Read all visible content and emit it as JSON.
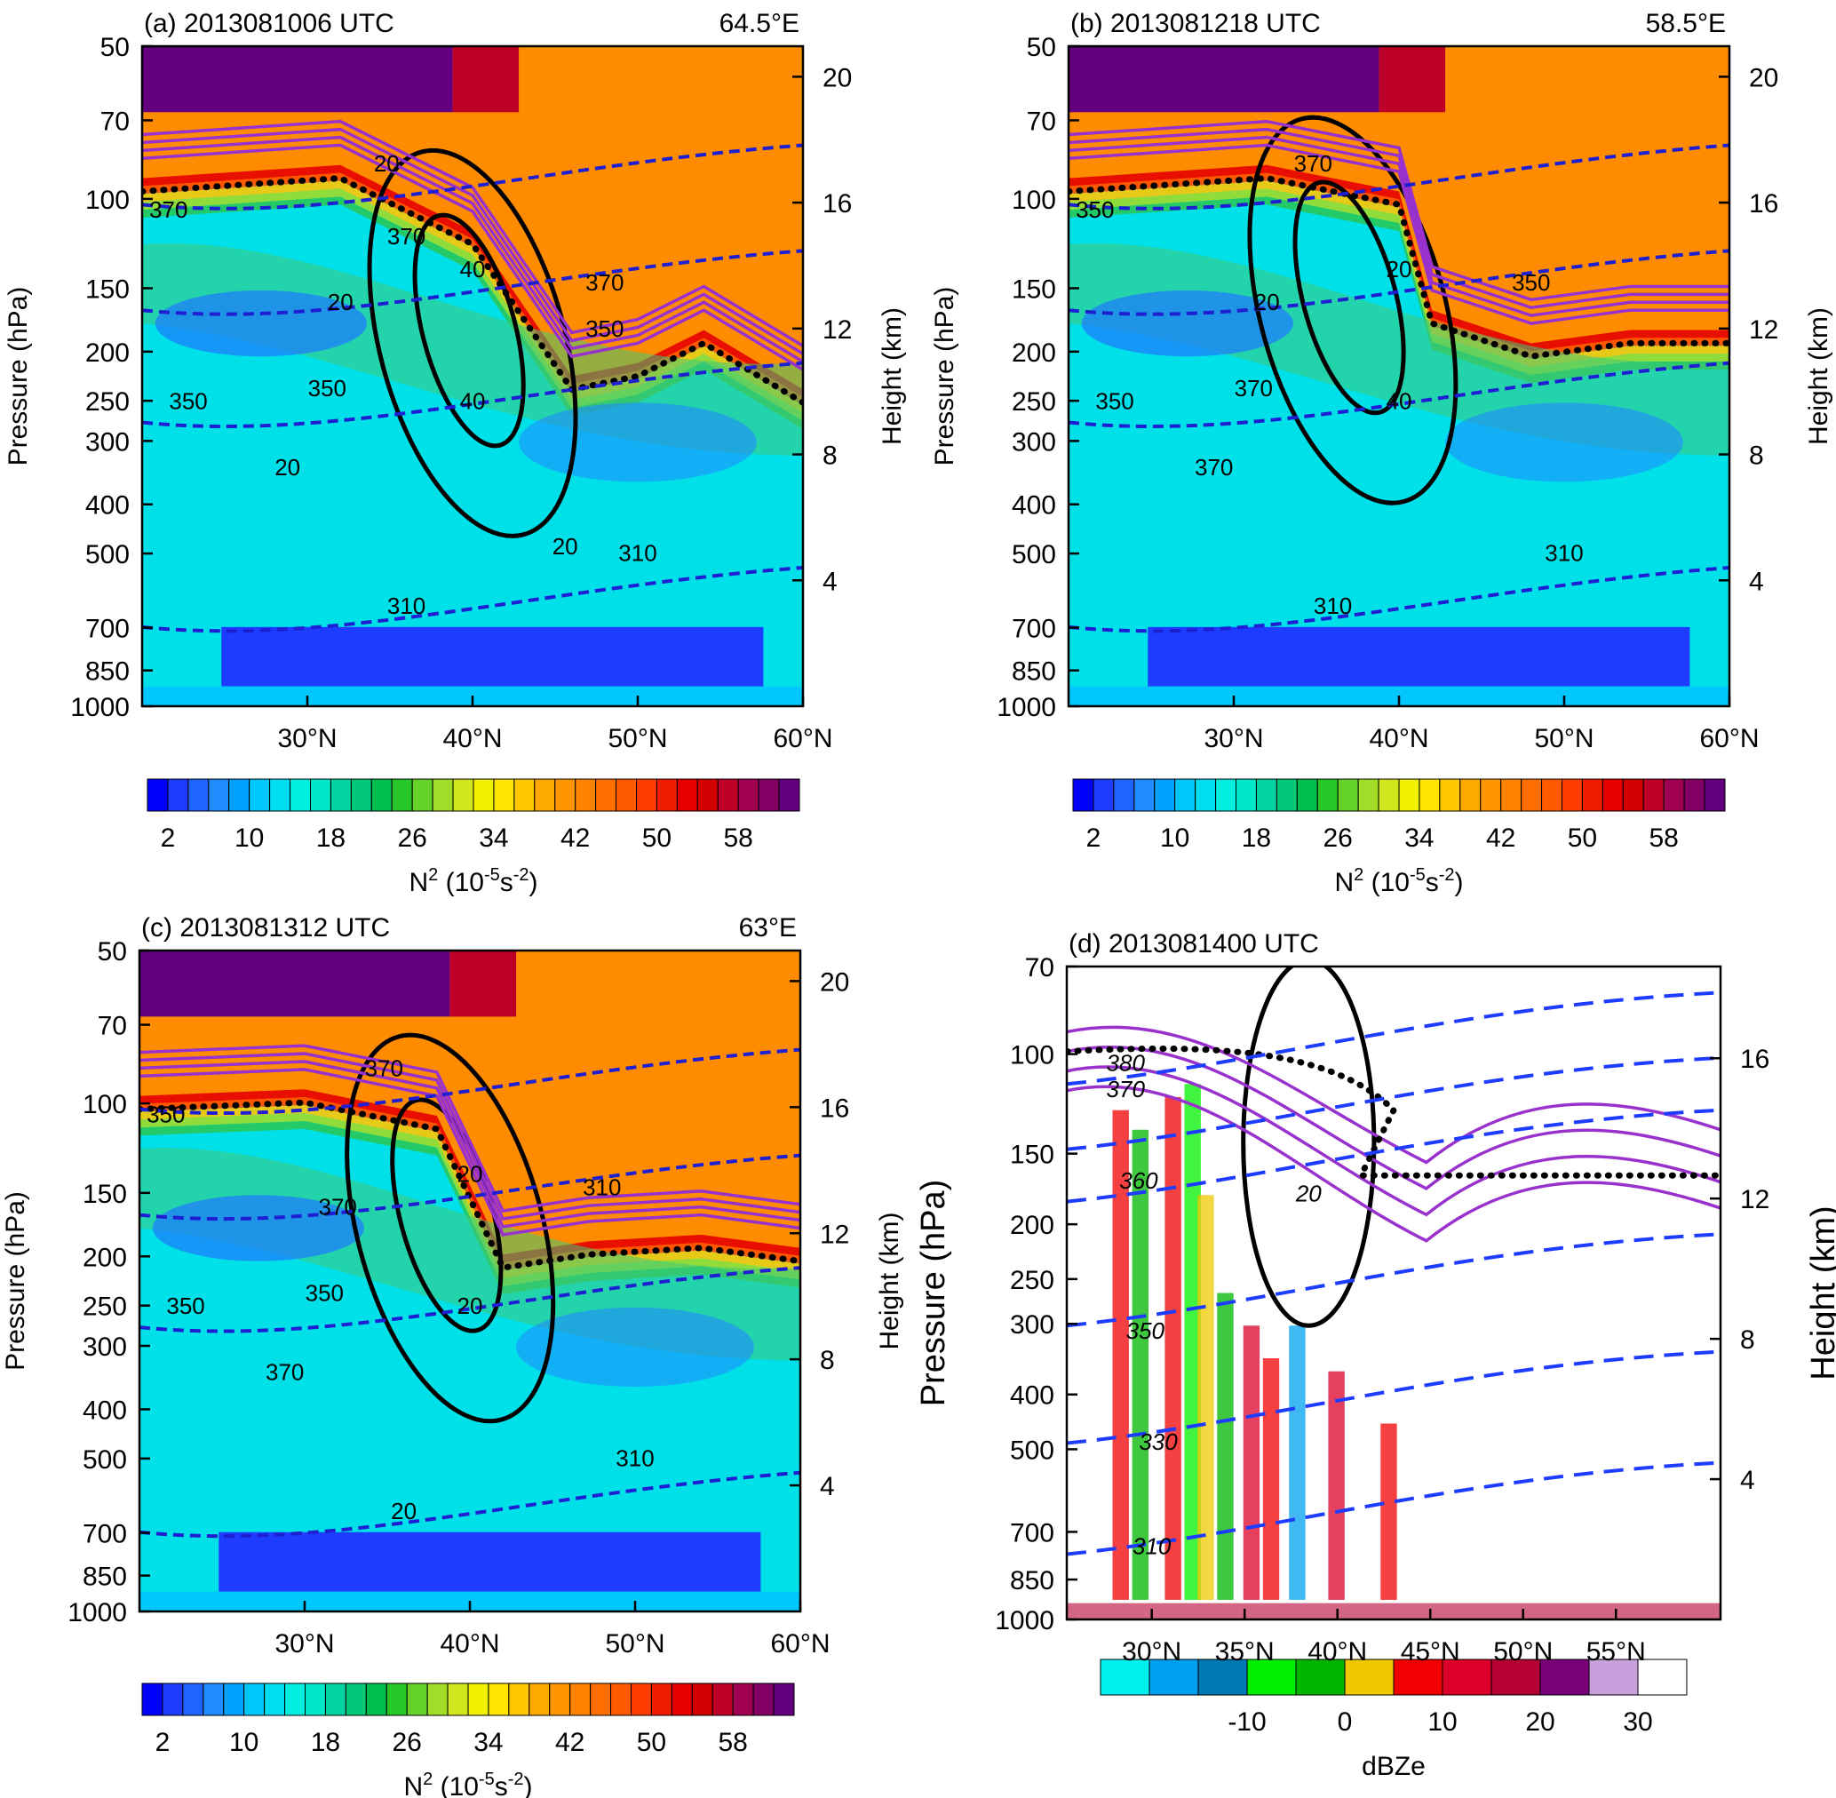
{
  "figure": {
    "colorbar_n2": {
      "labels": [
        "2",
        "10",
        "18",
        "26",
        "34",
        "42",
        "50",
        "58"
      ],
      "units_prefix": "N",
      "units_sup": "2",
      "units_mid": " (10",
      "units_sup2": "-5",
      "units_end": "s",
      "units_sup3": "-2",
      "units_close": ")",
      "colors": [
        "#0000ff",
        "#1e3cff",
        "#1f64ff",
        "#1e8cff",
        "#00a0ff",
        "#00c8ff",
        "#00dcf0",
        "#00f0e0",
        "#00e6c8",
        "#00d2a0",
        "#00c878",
        "#00be50",
        "#28c828",
        "#64d228",
        "#a0dc28",
        "#d2e61e",
        "#f0f000",
        "#ffe600",
        "#ffc800",
        "#ffaa00",
        "#ff9600",
        "#ff8200",
        "#ff6e00",
        "#ff5a00",
        "#ff3c00",
        "#f01e00",
        "#e60000",
        "#d20000",
        "#be0028",
        "#a00050",
        "#820064",
        "#640080"
      ]
    },
    "colorbar_dbz": {
      "labels": [
        "-10",
        "0",
        "10",
        "20",
        "30"
      ],
      "units": "dBZe",
      "colors": [
        "#00f0f0",
        "#00a0f0",
        "#0078b4",
        "#00f000",
        "#00b400",
        "#f0c800",
        "#f00000",
        "#dc0028",
        "#b40032",
        "#780078",
        "#c8a0dc",
        "#ffffff"
      ]
    },
    "axis_labels": {
      "left": "Pressure (hPa)",
      "right": "Height (km)"
    },
    "panels": [
      {
        "title": "(a) 2013081006 UTC",
        "longitude": "64.5°E",
        "pressure_ticks": [
          "50",
          "70",
          "100",
          "150",
          "200",
          "250",
          "300",
          "400",
          "500",
          "700",
          "850",
          "1000"
        ],
        "height_ticks": [
          "20",
          "16",
          "12",
          "8",
          "4"
        ],
        "lat_ticks": [
          "30°N",
          "40°N",
          "50°N",
          "60°N"
        ],
        "contour_labels": [
          "20",
          "40",
          "40",
          "20",
          "20",
          "370",
          "350",
          "350",
          "370",
          "310",
          "310",
          "370",
          "350",
          "20"
        ]
      },
      {
        "title": "(b) 2013081218 UTC",
        "longitude": "58.5°E",
        "pressure_ticks": [
          "50",
          "70",
          "100",
          "150",
          "200",
          "250",
          "300",
          "400",
          "500",
          "700",
          "850",
          "1000"
        ],
        "height_ticks": [
          "20",
          "16",
          "12",
          "8",
          "4"
        ],
        "lat_ticks": [
          "30°N",
          "40°N",
          "50°N",
          "60°N"
        ],
        "contour_labels": [
          "370",
          "20",
          "40",
          "20",
          "370",
          "350",
          "350",
          "370",
          "350",
          "310",
          "310"
        ]
      },
      {
        "title": "(c) 2013081312 UTC",
        "longitude": "63°E",
        "pressure_ticks": [
          "50",
          "70",
          "100",
          "150",
          "200",
          "250",
          "300",
          "400",
          "500",
          "700",
          "850",
          "1000"
        ],
        "height_ticks": [
          "20",
          "16",
          "12",
          "8",
          "4"
        ],
        "lat_ticks": [
          "30°N",
          "40°N",
          "50°N",
          "60°N"
        ],
        "contour_labels": [
          "370",
          "20",
          "20",
          "370",
          "370",
          "350",
          "350",
          "350",
          "310",
          "310",
          "20"
        ]
      },
      {
        "title": "(d) 2013081400 UTC",
        "longitude": "",
        "pressure_ticks": [
          "70",
          "100",
          "150",
          "200",
          "250",
          "300",
          "400",
          "500",
          "700",
          "850",
          "1000"
        ],
        "height_ticks": [
          "16",
          "12",
          "8",
          "4"
        ],
        "lat_ticks": [
          "30°N",
          "35°N",
          "40°N",
          "45°N",
          "50°N",
          "55°N"
        ],
        "contour_labels": [
          "380",
          "370",
          "360",
          "350",
          "330",
          "310",
          "20"
        ]
      }
    ]
  },
  "chart_data": [
    {
      "type": "heatmap",
      "title": "(a) 2013081006 UTC",
      "subtitle": "64.5°E",
      "xlabel": "",
      "ylabel": "Pressure (hPa)",
      "ylabel_right": "Height (km)",
      "x_ticks": [
        "30°N",
        "40°N",
        "50°N",
        "60°N"
      ],
      "y_ticks": [
        50,
        70,
        100,
        150,
        200,
        250,
        300,
        400,
        500,
        700,
        850,
        1000
      ],
      "y_scale": "log",
      "y_reversed": true,
      "ylim": [
        1000,
        50
      ],
      "right_ticks": [
        20,
        16,
        12,
        8,
        4
      ],
      "colorbar": {
        "label": "N2 (10-5s-2)",
        "range": [
          2,
          58
        ],
        "ticks": [
          2,
          10,
          18,
          26,
          34,
          42,
          50,
          58
        ]
      },
      "contour_labels": {
        "wind": [
          20,
          40
        ],
        "theta": [
          370,
          350,
          310
        ]
      }
    },
    {
      "type": "heatmap",
      "title": "(b) 2013081218 UTC",
      "subtitle": "58.5°E",
      "ylabel": "Pressure (hPa)",
      "ylabel_right": "Height (km)",
      "x_ticks": [
        "30°N",
        "40°N",
        "50°N",
        "60°N"
      ],
      "y_ticks": [
        50,
        70,
        100,
        150,
        200,
        250,
        300,
        400,
        500,
        700,
        850,
        1000
      ],
      "y_scale": "log",
      "ylim": [
        1000,
        50
      ],
      "right_ticks": [
        20,
        16,
        12,
        8,
        4
      ],
      "colorbar": {
        "label": "N2 (10-5s-2)",
        "range": [
          2,
          58
        ],
        "ticks": [
          2,
          10,
          18,
          26,
          34,
          42,
          50,
          58
        ]
      },
      "contour_labels": {
        "wind": [
          20,
          40
        ],
        "theta": [
          370,
          350,
          310
        ]
      }
    },
    {
      "type": "heatmap",
      "title": "(c) 2013081312 UTC",
      "subtitle": "63°E",
      "ylabel": "Pressure (hPa)",
      "ylabel_right": "Height (km)",
      "x_ticks": [
        "30°N",
        "40°N",
        "50°N",
        "60°N"
      ],
      "y_ticks": [
        50,
        70,
        100,
        150,
        200,
        250,
        300,
        400,
        500,
        700,
        850,
        1000
      ],
      "y_scale": "log",
      "ylim": [
        1000,
        50
      ],
      "right_ticks": [
        20,
        16,
        12,
        8,
        4
      ],
      "colorbar": {
        "label": "N2 (10-5s-2)",
        "range": [
          2,
          58
        ],
        "ticks": [
          2,
          10,
          18,
          26,
          34,
          42,
          50,
          58
        ]
      },
      "contour_labels": {
        "wind": [
          20
        ],
        "theta": [
          370,
          350,
          310
        ]
      }
    },
    {
      "type": "heatmap",
      "title": "(d) 2013081400 UTC",
      "ylabel": "Pressure (hPa)",
      "ylabel_right": "Height (km)",
      "x_ticks": [
        "30°N",
        "35°N",
        "40°N",
        "45°N",
        "50°N",
        "55°N"
      ],
      "y_ticks": [
        70,
        100,
        150,
        200,
        250,
        300,
        400,
        500,
        700,
        850,
        1000
      ],
      "y_scale": "log",
      "ylim": [
        1000,
        70
      ],
      "right_ticks": [
        16,
        12,
        8,
        4
      ],
      "colorbar": {
        "label": "dBZe",
        "ticks": [
          -10,
          0,
          10,
          20,
          30
        ]
      },
      "contour_labels": {
        "wind": [
          20
        ],
        "theta": [
          380,
          370,
          360,
          350,
          330,
          310
        ]
      }
    }
  ]
}
